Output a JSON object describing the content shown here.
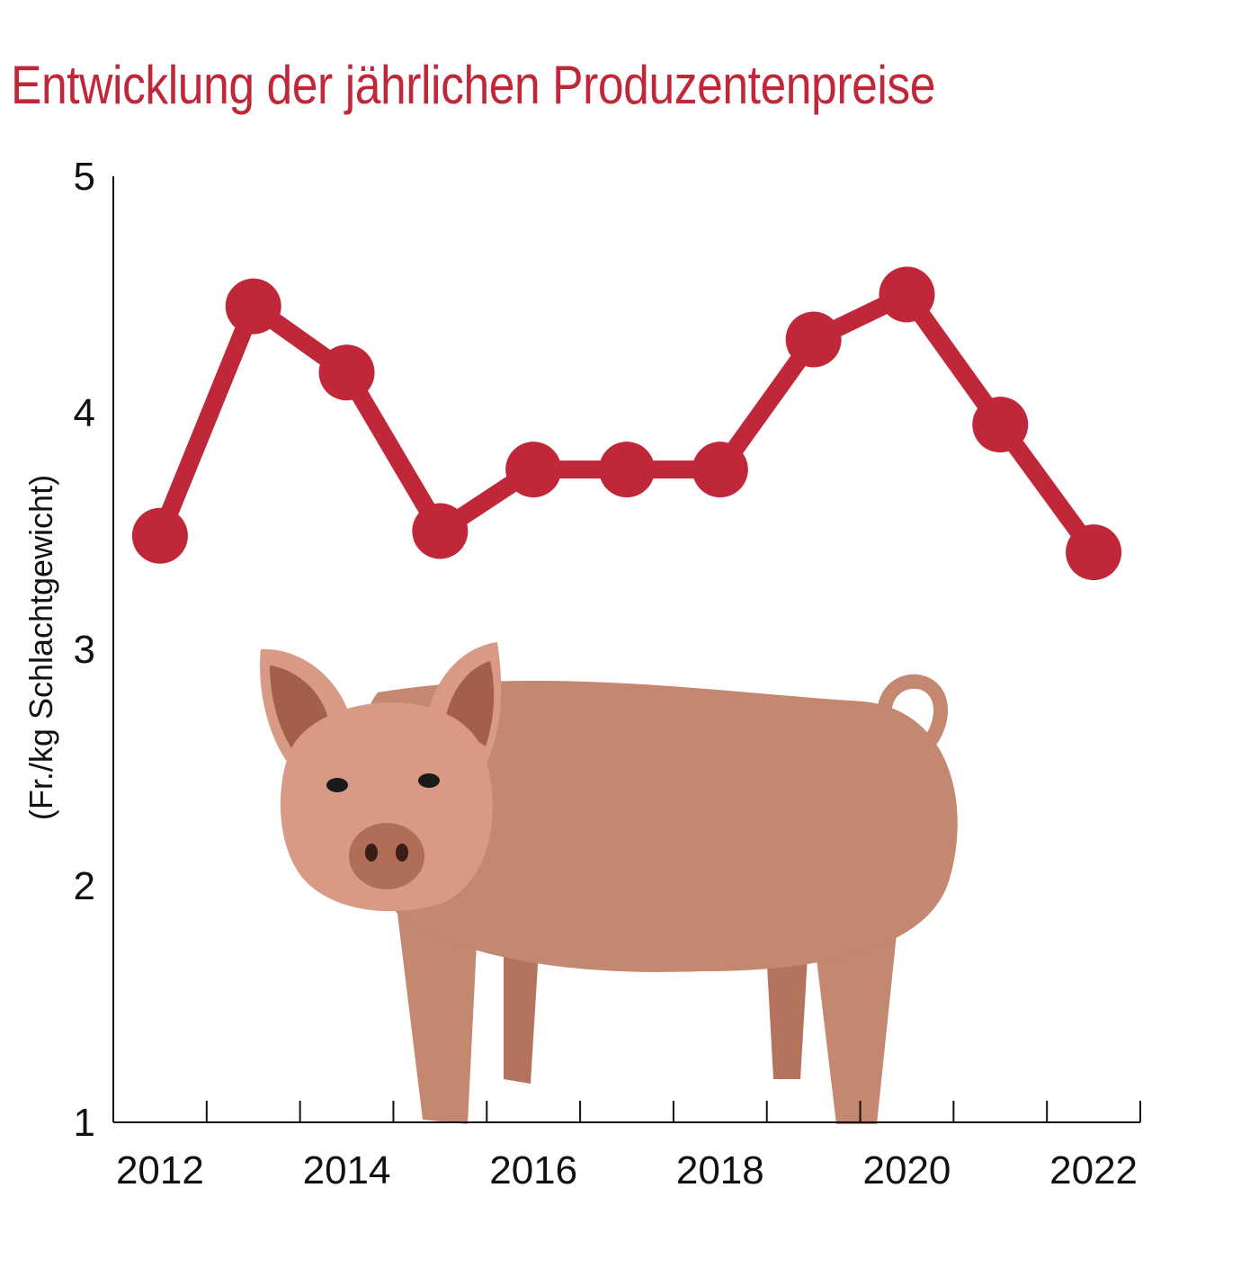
{
  "chart_data": {
    "type": "line",
    "title": "Entwicklung der jährlichen Produzentenpreise",
    "xlabel": "",
    "ylabel": "(Fr./kg Schlachtgewicht)",
    "ylim": [
      1,
      5
    ],
    "yticks": [
      1,
      2,
      3,
      4,
      5
    ],
    "x": [
      2012,
      2013,
      2014,
      2015,
      2016,
      2017,
      2018,
      2019,
      2020,
      2021,
      2022
    ],
    "xtick_labels": [
      "2012",
      "2014",
      "2016",
      "2018",
      "2020",
      "2022"
    ],
    "values": [
      3.48,
      4.45,
      4.17,
      3.5,
      3.76,
      3.76,
      3.76,
      4.31,
      4.5,
      3.95,
      3.41
    ],
    "grid": false,
    "series_color": "#c0283a",
    "decoration": "pig-illustration"
  }
}
